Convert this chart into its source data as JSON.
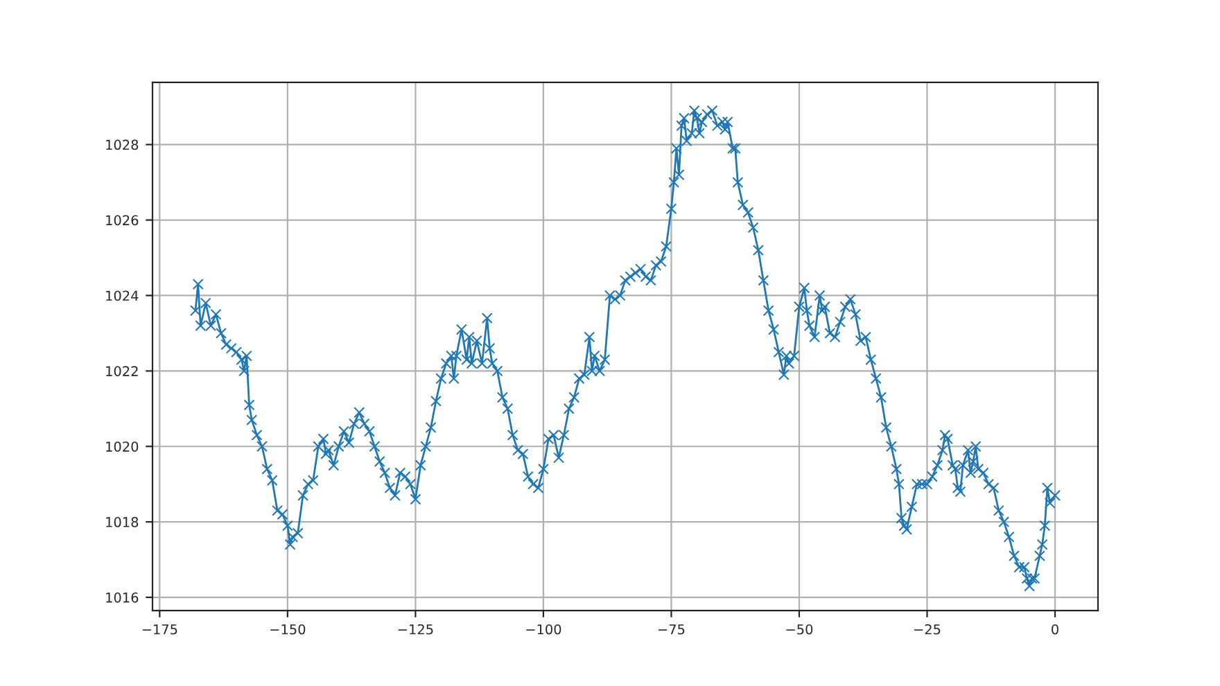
{
  "chart_data": {
    "type": "line",
    "marker": "cross",
    "line_style": "solid",
    "grid": true,
    "legend": false,
    "xlim": [
      -176.4,
      8.4
    ],
    "ylim": [
      1015.65,
      1029.65
    ],
    "xticks": [
      {
        "value": -175,
        "label": "−175"
      },
      {
        "value": -150,
        "label": "−150"
      },
      {
        "value": -125,
        "label": "−125"
      },
      {
        "value": -100,
        "label": "−100"
      },
      {
        "value": -75,
        "label": "−75"
      },
      {
        "value": -50,
        "label": "−50"
      },
      {
        "value": -25,
        "label": "−25"
      },
      0
    ],
    "yticks": [
      1016,
      1018,
      1020,
      1022,
      1024,
      1026,
      1028
    ],
    "series": [
      {
        "color": "#1f77b4",
        "x": [
          -168,
          -167.5,
          -167,
          -166,
          -165,
          -164,
          -163,
          -162,
          -161,
          -160,
          -159,
          -158.5,
          -158,
          -157.5,
          -157,
          -156,
          -155,
          -154,
          -153,
          -152,
          -151,
          -150,
          -149.5,
          -149,
          -148,
          -147,
          -146,
          -145,
          -144,
          -143,
          -142.5,
          -142,
          -141,
          -140,
          -139,
          -138,
          -137,
          -136,
          -135,
          -134,
          -133,
          -132,
          -131,
          -130,
          -129,
          -128,
          -127,
          -126,
          -125,
          -124,
          -123,
          -122,
          -121,
          -120,
          -119,
          -118,
          -117.5,
          -117,
          -116,
          -115,
          -114.5,
          -114,
          -113,
          -112,
          -111,
          -110.5,
          -110,
          -109,
          -108,
          -107,
          -106,
          -105,
          -104,
          -103,
          -102,
          -101,
          -100,
          -99,
          -98,
          -97,
          -96,
          -95,
          -94,
          -93,
          -92,
          -91,
          -90.5,
          -90,
          -89,
          -88,
          -87,
          -86,
          -85,
          -84,
          -83,
          -82,
          -81,
          -80,
          -79,
          -78,
          -77,
          -76,
          -75,
          -74.5,
          -74,
          -73.5,
          -73,
          -72.5,
          -72,
          -71,
          -70.5,
          -70,
          -69.5,
          -69,
          -68,
          -67,
          -66,
          -65,
          -64.5,
          -64,
          -63,
          -62.5,
          -62,
          -61,
          -60,
          -59,
          -58,
          -57,
          -56,
          -55,
          -54,
          -53,
          -52.5,
          -52,
          -51,
          -50,
          -49,
          -48.5,
          -48,
          -47,
          -46,
          -45.5,
          -45,
          -44,
          -43,
          -42,
          -41,
          -40,
          -39,
          -38,
          -37,
          -36,
          -35,
          -34,
          -33,
          -32,
          -31,
          -30.5,
          -30,
          -29.5,
          -29,
          -28,
          -27,
          -26,
          -25,
          -24,
          -23,
          -22,
          -21.5,
          -21,
          -20,
          -19.5,
          -19,
          -18.5,
          -18,
          -17,
          -16.5,
          -16,
          -15.5,
          -15,
          -14,
          -13,
          -12,
          -11,
          -10,
          -9,
          -8,
          -7,
          -6,
          -5.5,
          -5,
          -4.5,
          -4,
          -3,
          -2.5,
          -2,
          -1.5,
          -1,
          0
        ],
        "values": [
          1023.6,
          1024.3,
          1023.2,
          1023.8,
          1023.2,
          1023.5,
          1023.0,
          1022.7,
          1022.6,
          1022.5,
          1022.3,
          1022.0,
          1022.4,
          1021.1,
          1020.7,
          1020.3,
          1020.0,
          1019.4,
          1019.1,
          1018.3,
          1018.2,
          1017.9,
          1017.4,
          1017.6,
          1017.7,
          1018.7,
          1019.0,
          1019.1,
          1020.0,
          1020.2,
          1019.8,
          1019.9,
          1019.5,
          1020.0,
          1020.4,
          1020.1,
          1020.6,
          1020.9,
          1020.6,
          1020.4,
          1020.0,
          1019.6,
          1019.3,
          1018.9,
          1018.7,
          1019.3,
          1019.2,
          1019.0,
          1018.6,
          1019.5,
          1020.0,
          1020.5,
          1021.2,
          1021.8,
          1022.2,
          1022.4,
          1021.8,
          1022.4,
          1023.1,
          1022.3,
          1022.9,
          1022.2,
          1022.8,
          1022.2,
          1023.4,
          1022.6,
          1022.2,
          1022.0,
          1021.3,
          1021.0,
          1020.3,
          1019.9,
          1019.8,
          1019.2,
          1019.0,
          1018.9,
          1019.4,
          1020.2,
          1020.3,
          1019.7,
          1020.3,
          1021.0,
          1021.3,
          1021.8,
          1021.9,
          1022.9,
          1022.0,
          1022.4,
          1022.0,
          1022.3,
          1024.0,
          1023.9,
          1024.0,
          1024.4,
          1024.5,
          1024.6,
          1024.7,
          1024.5,
          1024.4,
          1024.8,
          1024.9,
          1025.3,
          1026.3,
          1027.0,
          1027.9,
          1027.2,
          1028.5,
          1028.7,
          1028.1,
          1028.3,
          1028.9,
          1028.7,
          1028.3,
          1028.6,
          1028.8,
          1028.9,
          1028.5,
          1028.6,
          1028.4,
          1028.6,
          1027.9,
          1027.9,
          1027.0,
          1026.4,
          1026.2,
          1025.8,
          1025.2,
          1024.4,
          1023.6,
          1023.1,
          1022.5,
          1021.9,
          1022.4,
          1022.2,
          1022.4,
          1023.7,
          1024.2,
          1023.6,
          1023.2,
          1022.9,
          1024.0,
          1023.6,
          1023.7,
          1023.0,
          1022.9,
          1023.3,
          1023.7,
          1023.9,
          1023.5,
          1022.8,
          1022.9,
          1022.3,
          1021.8,
          1021.3,
          1020.5,
          1020.0,
          1019.4,
          1019.0,
          1018.1,
          1017.9,
          1017.8,
          1018.4,
          1019.0,
          1019.0,
          1019.0,
          1019.2,
          1019.5,
          1019.9,
          1020.3,
          1020.2,
          1019.5,
          1019.4,
          1018.9,
          1018.8,
          1019.5,
          1019.9,
          1019.3,
          1019.6,
          1020.0,
          1019.4,
          1019.3,
          1019.0,
          1018.9,
          1018.3,
          1018.0,
          1017.6,
          1017.1,
          1016.8,
          1016.8,
          1016.5,
          1016.3,
          1016.5,
          1016.5,
          1017.1,
          1017.4,
          1017.9,
          1018.9,
          1018.5,
          1018.7
        ]
      }
    ]
  }
}
